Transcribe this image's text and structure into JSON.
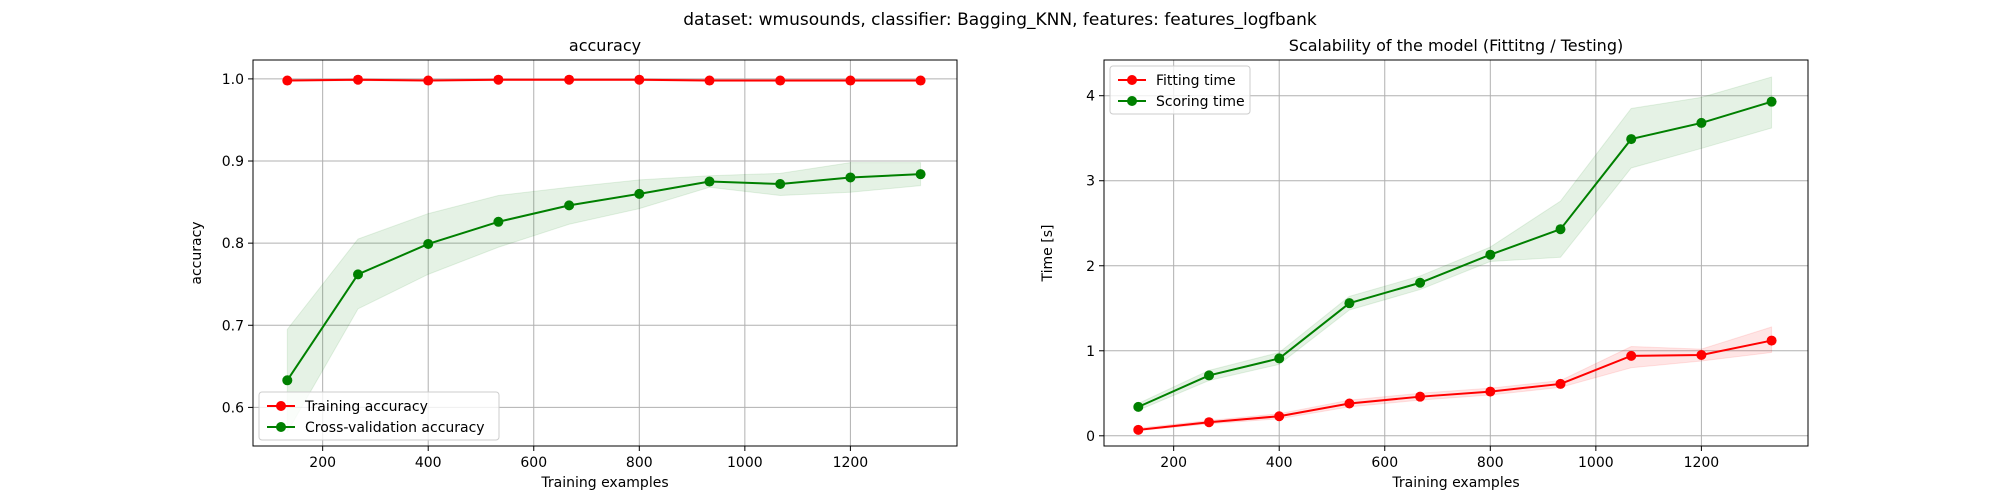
{
  "figure": {
    "suptitle": "dataset: wmusounds, classifier: Bagging_KNN, features: features_logfbank"
  },
  "chart_data": [
    {
      "type": "line",
      "title": "accuracy",
      "xlabel": "Training examples",
      "ylabel": "accuracy",
      "xlim": [
        68,
        1402
      ],
      "ylim": [
        0.553,
        1.023
      ],
      "xticks": [
        200,
        400,
        600,
        800,
        1000,
        1200
      ],
      "yticks": [
        0.6,
        0.7,
        0.8,
        0.9,
        1.0
      ],
      "ytick_labels": [
        "0.6",
        "0.7",
        "0.8",
        "0.9",
        "1.0"
      ],
      "grid": true,
      "legend": "lower-left",
      "x": [
        133,
        267,
        400,
        533,
        667,
        800,
        933,
        1067,
        1200,
        1333
      ],
      "series": [
        {
          "name": "Training accuracy",
          "color": "#ff0000",
          "values": [
            0.998,
            0.999,
            0.998,
            0.999,
            0.999,
            0.999,
            0.998,
            0.998,
            0.998,
            0.998
          ],
          "lower": [
            0.997,
            0.998,
            0.997,
            0.998,
            0.998,
            0.998,
            0.997,
            0.997,
            0.997,
            0.997
          ],
          "upper": [
            0.999,
            1.0,
            0.999,
            1.0,
            1.0,
            1.0,
            0.999,
            0.999,
            0.999,
            0.999
          ]
        },
        {
          "name": "Cross-validation accuracy",
          "color": "#008000",
          "values": [
            0.633,
            0.762,
            0.799,
            0.826,
            0.846,
            0.86,
            0.875,
            0.872,
            0.88,
            0.884
          ],
          "lower": [
            0.57,
            0.72,
            0.762,
            0.795,
            0.823,
            0.842,
            0.868,
            0.858,
            0.862,
            0.87
          ],
          "upper": [
            0.695,
            0.805,
            0.836,
            0.858,
            0.868,
            0.877,
            0.882,
            0.885,
            0.898,
            0.898
          ]
        }
      ]
    },
    {
      "type": "line",
      "title": "Scalability of the model (Fittitng / Testing)",
      "xlabel": "Training examples",
      "ylabel": "Time [s]",
      "xlim": [
        68,
        1402
      ],
      "ylim": [
        -0.12,
        4.42
      ],
      "xticks": [
        200,
        400,
        600,
        800,
        1000,
        1200
      ],
      "yticks": [
        0,
        1,
        2,
        3,
        4
      ],
      "ytick_labels": [
        "0",
        "1",
        "2",
        "3",
        "4"
      ],
      "grid": true,
      "legend": "upper-left",
      "x": [
        133,
        267,
        400,
        533,
        667,
        800,
        933,
        1067,
        1200,
        1333
      ],
      "series": [
        {
          "name": "Fitting time",
          "color": "#ff0000",
          "values": [
            0.07,
            0.16,
            0.23,
            0.38,
            0.46,
            0.52,
            0.61,
            0.94,
            0.95,
            1.12
          ],
          "lower": [
            0.06,
            0.14,
            0.2,
            0.34,
            0.42,
            0.48,
            0.57,
            0.8,
            0.88,
            0.98
          ],
          "upper": [
            0.09,
            0.18,
            0.26,
            0.42,
            0.5,
            0.56,
            0.65,
            1.05,
            1.02,
            1.28
          ]
        },
        {
          "name": "Scoring time",
          "color": "#008000",
          "values": [
            0.34,
            0.71,
            0.91,
            1.56,
            1.8,
            2.13,
            2.43,
            3.49,
            3.68,
            3.93
          ],
          "lower": [
            0.3,
            0.65,
            0.84,
            1.48,
            1.72,
            2.05,
            2.1,
            3.15,
            3.38,
            3.62
          ],
          "upper": [
            0.38,
            0.77,
            0.98,
            1.64,
            1.88,
            2.22,
            2.76,
            3.85,
            3.98,
            4.22
          ]
        }
      ]
    }
  ]
}
